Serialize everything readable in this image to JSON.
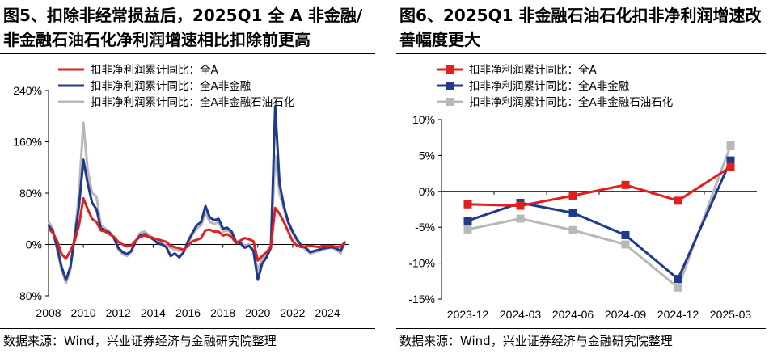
{
  "chart_data": [
    {
      "type": "line",
      "title_line1": "图5、扣除非经常损益后，2025Q1 全 A 非金融/",
      "title_line2": "非金融石油石化净利润增速相比扣除前更高",
      "source": "数据来源：Wind，兴业证券经济与金融研究院整理",
      "ylim": [
        -80,
        240
      ],
      "yticks": [
        -80,
        0,
        80,
        160,
        240
      ],
      "ytick_labels": [
        "-80%",
        "0%",
        "80%",
        "160%",
        "240%"
      ],
      "xlim": [
        2008,
        2025.25
      ],
      "xticks": [
        2008,
        2010,
        2012,
        2014,
        2016,
        2018,
        2020,
        2022,
        2024
      ],
      "xtick_labels": [
        "2008",
        "2010",
        "2012",
        "2014",
        "2016",
        "2018",
        "2020",
        "2022",
        "2024"
      ],
      "legend_position": "top-left",
      "series": [
        {
          "name": "扣非净利润累计同比：全A",
          "color": "#e02020",
          "points": [
            [
              2008.0,
              25
            ],
            [
              2008.25,
              18
            ],
            [
              2008.5,
              5
            ],
            [
              2008.75,
              -15
            ],
            [
              2009.0,
              -22
            ],
            [
              2009.25,
              -10
            ],
            [
              2009.5,
              5
            ],
            [
              2009.75,
              30
            ],
            [
              2010.0,
              72
            ],
            [
              2010.25,
              55
            ],
            [
              2010.5,
              40
            ],
            [
              2010.75,
              35
            ],
            [
              2011.0,
              22
            ],
            [
              2011.25,
              20
            ],
            [
              2011.5,
              16
            ],
            [
              2011.75,
              12
            ],
            [
              2012.0,
              4
            ],
            [
              2012.25,
              0
            ],
            [
              2012.5,
              -3
            ],
            [
              2012.75,
              -2
            ],
            [
              2013.0,
              6
            ],
            [
              2013.25,
              12
            ],
            [
              2013.5,
              14
            ],
            [
              2013.75,
              12
            ],
            [
              2014.0,
              10
            ],
            [
              2014.25,
              8
            ],
            [
              2014.5,
              6
            ],
            [
              2014.75,
              4
            ],
            [
              2015.0,
              -2
            ],
            [
              2015.25,
              -4
            ],
            [
              2015.5,
              -6
            ],
            [
              2015.75,
              -8
            ],
            [
              2016.0,
              -2
            ],
            [
              2016.25,
              5
            ],
            [
              2016.5,
              7
            ],
            [
              2016.75,
              10
            ],
            [
              2017.0,
              22
            ],
            [
              2017.25,
              23
            ],
            [
              2017.5,
              20
            ],
            [
              2017.75,
              20
            ],
            [
              2018.0,
              14
            ],
            [
              2018.25,
              16
            ],
            [
              2018.5,
              12
            ],
            [
              2018.75,
              2
            ],
            [
              2019.0,
              6
            ],
            [
              2019.25,
              10
            ],
            [
              2019.5,
              8
            ],
            [
              2019.75,
              5
            ],
            [
              2020.0,
              -25
            ],
            [
              2020.25,
              -18
            ],
            [
              2020.5,
              -12
            ],
            [
              2020.75,
              -3
            ],
            [
              2021.0,
              57
            ],
            [
              2021.25,
              48
            ],
            [
              2021.5,
              35
            ],
            [
              2021.75,
              20
            ],
            [
              2022.0,
              5
            ],
            [
              2022.25,
              -2
            ],
            [
              2022.5,
              -4
            ],
            [
              2022.75,
              -3
            ],
            [
              2023.0,
              -2
            ],
            [
              2023.25,
              -3
            ],
            [
              2023.5,
              -4
            ],
            [
              2023.75,
              -2
            ],
            [
              2024.0,
              -3
            ],
            [
              2024.25,
              -2
            ],
            [
              2024.5,
              -4
            ],
            [
              2024.75,
              -3
            ],
            [
              2025.0,
              3
            ]
          ]
        },
        {
          "name": "扣非净利润累计同比：全A非金融",
          "color": "#1f3a8c",
          "points": [
            [
              2008.0,
              30
            ],
            [
              2008.25,
              20
            ],
            [
              2008.5,
              -5
            ],
            [
              2008.75,
              -35
            ],
            [
              2009.0,
              -55
            ],
            [
              2009.25,
              -35
            ],
            [
              2009.5,
              10
            ],
            [
              2009.75,
              60
            ],
            [
              2010.0,
              132
            ],
            [
              2010.25,
              95
            ],
            [
              2010.5,
              65
            ],
            [
              2010.75,
              55
            ],
            [
              2011.0,
              25
            ],
            [
              2011.25,
              22
            ],
            [
              2011.5,
              18
            ],
            [
              2011.75,
              10
            ],
            [
              2012.0,
              -5
            ],
            [
              2012.25,
              -12
            ],
            [
              2012.5,
              -15
            ],
            [
              2012.75,
              -10
            ],
            [
              2013.0,
              5
            ],
            [
              2013.25,
              14
            ],
            [
              2013.5,
              16
            ],
            [
              2013.75,
              12
            ],
            [
              2014.0,
              8
            ],
            [
              2014.25,
              2
            ],
            [
              2014.5,
              0
            ],
            [
              2014.75,
              -4
            ],
            [
              2015.0,
              -18
            ],
            [
              2015.25,
              -14
            ],
            [
              2015.5,
              -20
            ],
            [
              2015.75,
              -12
            ],
            [
              2016.0,
              5
            ],
            [
              2016.25,
              18
            ],
            [
              2016.5,
              30
            ],
            [
              2016.75,
              35
            ],
            [
              2017.0,
              60
            ],
            [
              2017.25,
              42
            ],
            [
              2017.5,
              38
            ],
            [
              2017.75,
              40
            ],
            [
              2018.0,
              25
            ],
            [
              2018.25,
              26
            ],
            [
              2018.5,
              20
            ],
            [
              2018.75,
              4
            ],
            [
              2019.0,
              2
            ],
            [
              2019.25,
              -5
            ],
            [
              2019.5,
              -2
            ],
            [
              2019.75,
              -10
            ],
            [
              2020.0,
              -55
            ],
            [
              2020.25,
              -30
            ],
            [
              2020.5,
              -20
            ],
            [
              2020.75,
              -5
            ],
            [
              2021.0,
              215
            ],
            [
              2021.25,
              95
            ],
            [
              2021.5,
              60
            ],
            [
              2021.75,
              35
            ],
            [
              2022.0,
              20
            ],
            [
              2022.25,
              8
            ],
            [
              2022.5,
              -2
            ],
            [
              2022.75,
              -5
            ],
            [
              2023.0,
              -12
            ],
            [
              2023.25,
              -10
            ],
            [
              2023.5,
              -8
            ],
            [
              2023.75,
              -6
            ],
            [
              2024.0,
              -5
            ],
            [
              2024.25,
              -4
            ],
            [
              2024.5,
              -6
            ],
            [
              2024.75,
              -10
            ],
            [
              2025.0,
              4
            ]
          ]
        },
        {
          "name": "扣非净利润累计同比：全A非金融石油石化",
          "color": "#b8b8b8",
          "points": [
            [
              2008.0,
              35
            ],
            [
              2008.25,
              25
            ],
            [
              2008.5,
              -10
            ],
            [
              2008.75,
              -40
            ],
            [
              2009.0,
              -60
            ],
            [
              2009.25,
              -40
            ],
            [
              2009.5,
              15
            ],
            [
              2009.75,
              80
            ],
            [
              2010.0,
              190
            ],
            [
              2010.25,
              115
            ],
            [
              2010.5,
              80
            ],
            [
              2010.75,
              75
            ],
            [
              2011.0,
              30
            ],
            [
              2011.25,
              25
            ],
            [
              2011.5,
              20
            ],
            [
              2011.75,
              10
            ],
            [
              2012.0,
              -8
            ],
            [
              2012.25,
              -15
            ],
            [
              2012.5,
              -18
            ],
            [
              2012.75,
              -12
            ],
            [
              2013.0,
              6
            ],
            [
              2013.25,
              18
            ],
            [
              2013.5,
              20
            ],
            [
              2013.75,
              15
            ],
            [
              2014.0,
              10
            ],
            [
              2014.25,
              5
            ],
            [
              2014.5,
              2
            ],
            [
              2014.75,
              -2
            ],
            [
              2015.0,
              -5
            ],
            [
              2015.25,
              -8
            ],
            [
              2015.5,
              -10
            ],
            [
              2015.75,
              -8
            ],
            [
              2016.0,
              2
            ],
            [
              2016.25,
              15
            ],
            [
              2016.5,
              25
            ],
            [
              2016.75,
              30
            ],
            [
              2017.0,
              50
            ],
            [
              2017.25,
              35
            ],
            [
              2017.5,
              32
            ],
            [
              2017.75,
              35
            ],
            [
              2018.0,
              20
            ],
            [
              2018.25,
              22
            ],
            [
              2018.5,
              18
            ],
            [
              2018.75,
              5
            ],
            [
              2019.0,
              3
            ],
            [
              2019.25,
              -2
            ],
            [
              2019.5,
              0
            ],
            [
              2019.75,
              -8
            ],
            [
              2020.0,
              -40
            ],
            [
              2020.25,
              -22
            ],
            [
              2020.5,
              -15
            ],
            [
              2020.75,
              0
            ],
            [
              2021.0,
              138
            ],
            [
              2021.25,
              80
            ],
            [
              2021.5,
              55
            ],
            [
              2021.75,
              32
            ],
            [
              2022.0,
              18
            ],
            [
              2022.25,
              5
            ],
            [
              2022.5,
              -3
            ],
            [
              2022.75,
              -8
            ],
            [
              2023.0,
              -14
            ],
            [
              2023.25,
              -12
            ],
            [
              2023.5,
              -10
            ],
            [
              2023.75,
              -8
            ],
            [
              2024.0,
              -6
            ],
            [
              2024.25,
              -5
            ],
            [
              2024.5,
              -8
            ],
            [
              2024.75,
              -14
            ],
            [
              2025.0,
              6
            ]
          ]
        }
      ]
    },
    {
      "type": "line",
      "title_line1": "图6、2025Q1 非金融石油石化扣非净利润增速改",
      "title_line2": "善幅度更大",
      "source": "数据来源：Wind，兴业证券经济与金融研究院整理",
      "ylim": [
        -15,
        10
      ],
      "yticks": [
        -15,
        -10,
        -5,
        0,
        5,
        10
      ],
      "ytick_labels": [
        "-15%",
        "-10%",
        "-5%",
        "0%",
        "5%",
        "10%"
      ],
      "categories": [
        "2023-12",
        "2024-03",
        "2024-06",
        "2024-09",
        "2024-12",
        "2025-03"
      ],
      "legend_position": "top-left",
      "series": [
        {
          "name": "扣非净利润累计同比：全A",
          "color": "#e02020",
          "marker": "square",
          "values": [
            -1.8,
            -2.0,
            -0.6,
            0.9,
            -1.3,
            3.4
          ]
        },
        {
          "name": "扣非净利润累计同比：全A非金融",
          "color": "#1f3a8c",
          "marker": "square",
          "values": [
            -4.1,
            -1.6,
            -3.0,
            -6.1,
            -12.2,
            4.3
          ]
        },
        {
          "name": "扣非净利润累计同比：全A非金融石油石化",
          "color": "#b8b8b8",
          "marker": "square",
          "values": [
            -5.3,
            -3.8,
            -5.4,
            -7.4,
            -13.4,
            6.4
          ]
        }
      ]
    }
  ]
}
